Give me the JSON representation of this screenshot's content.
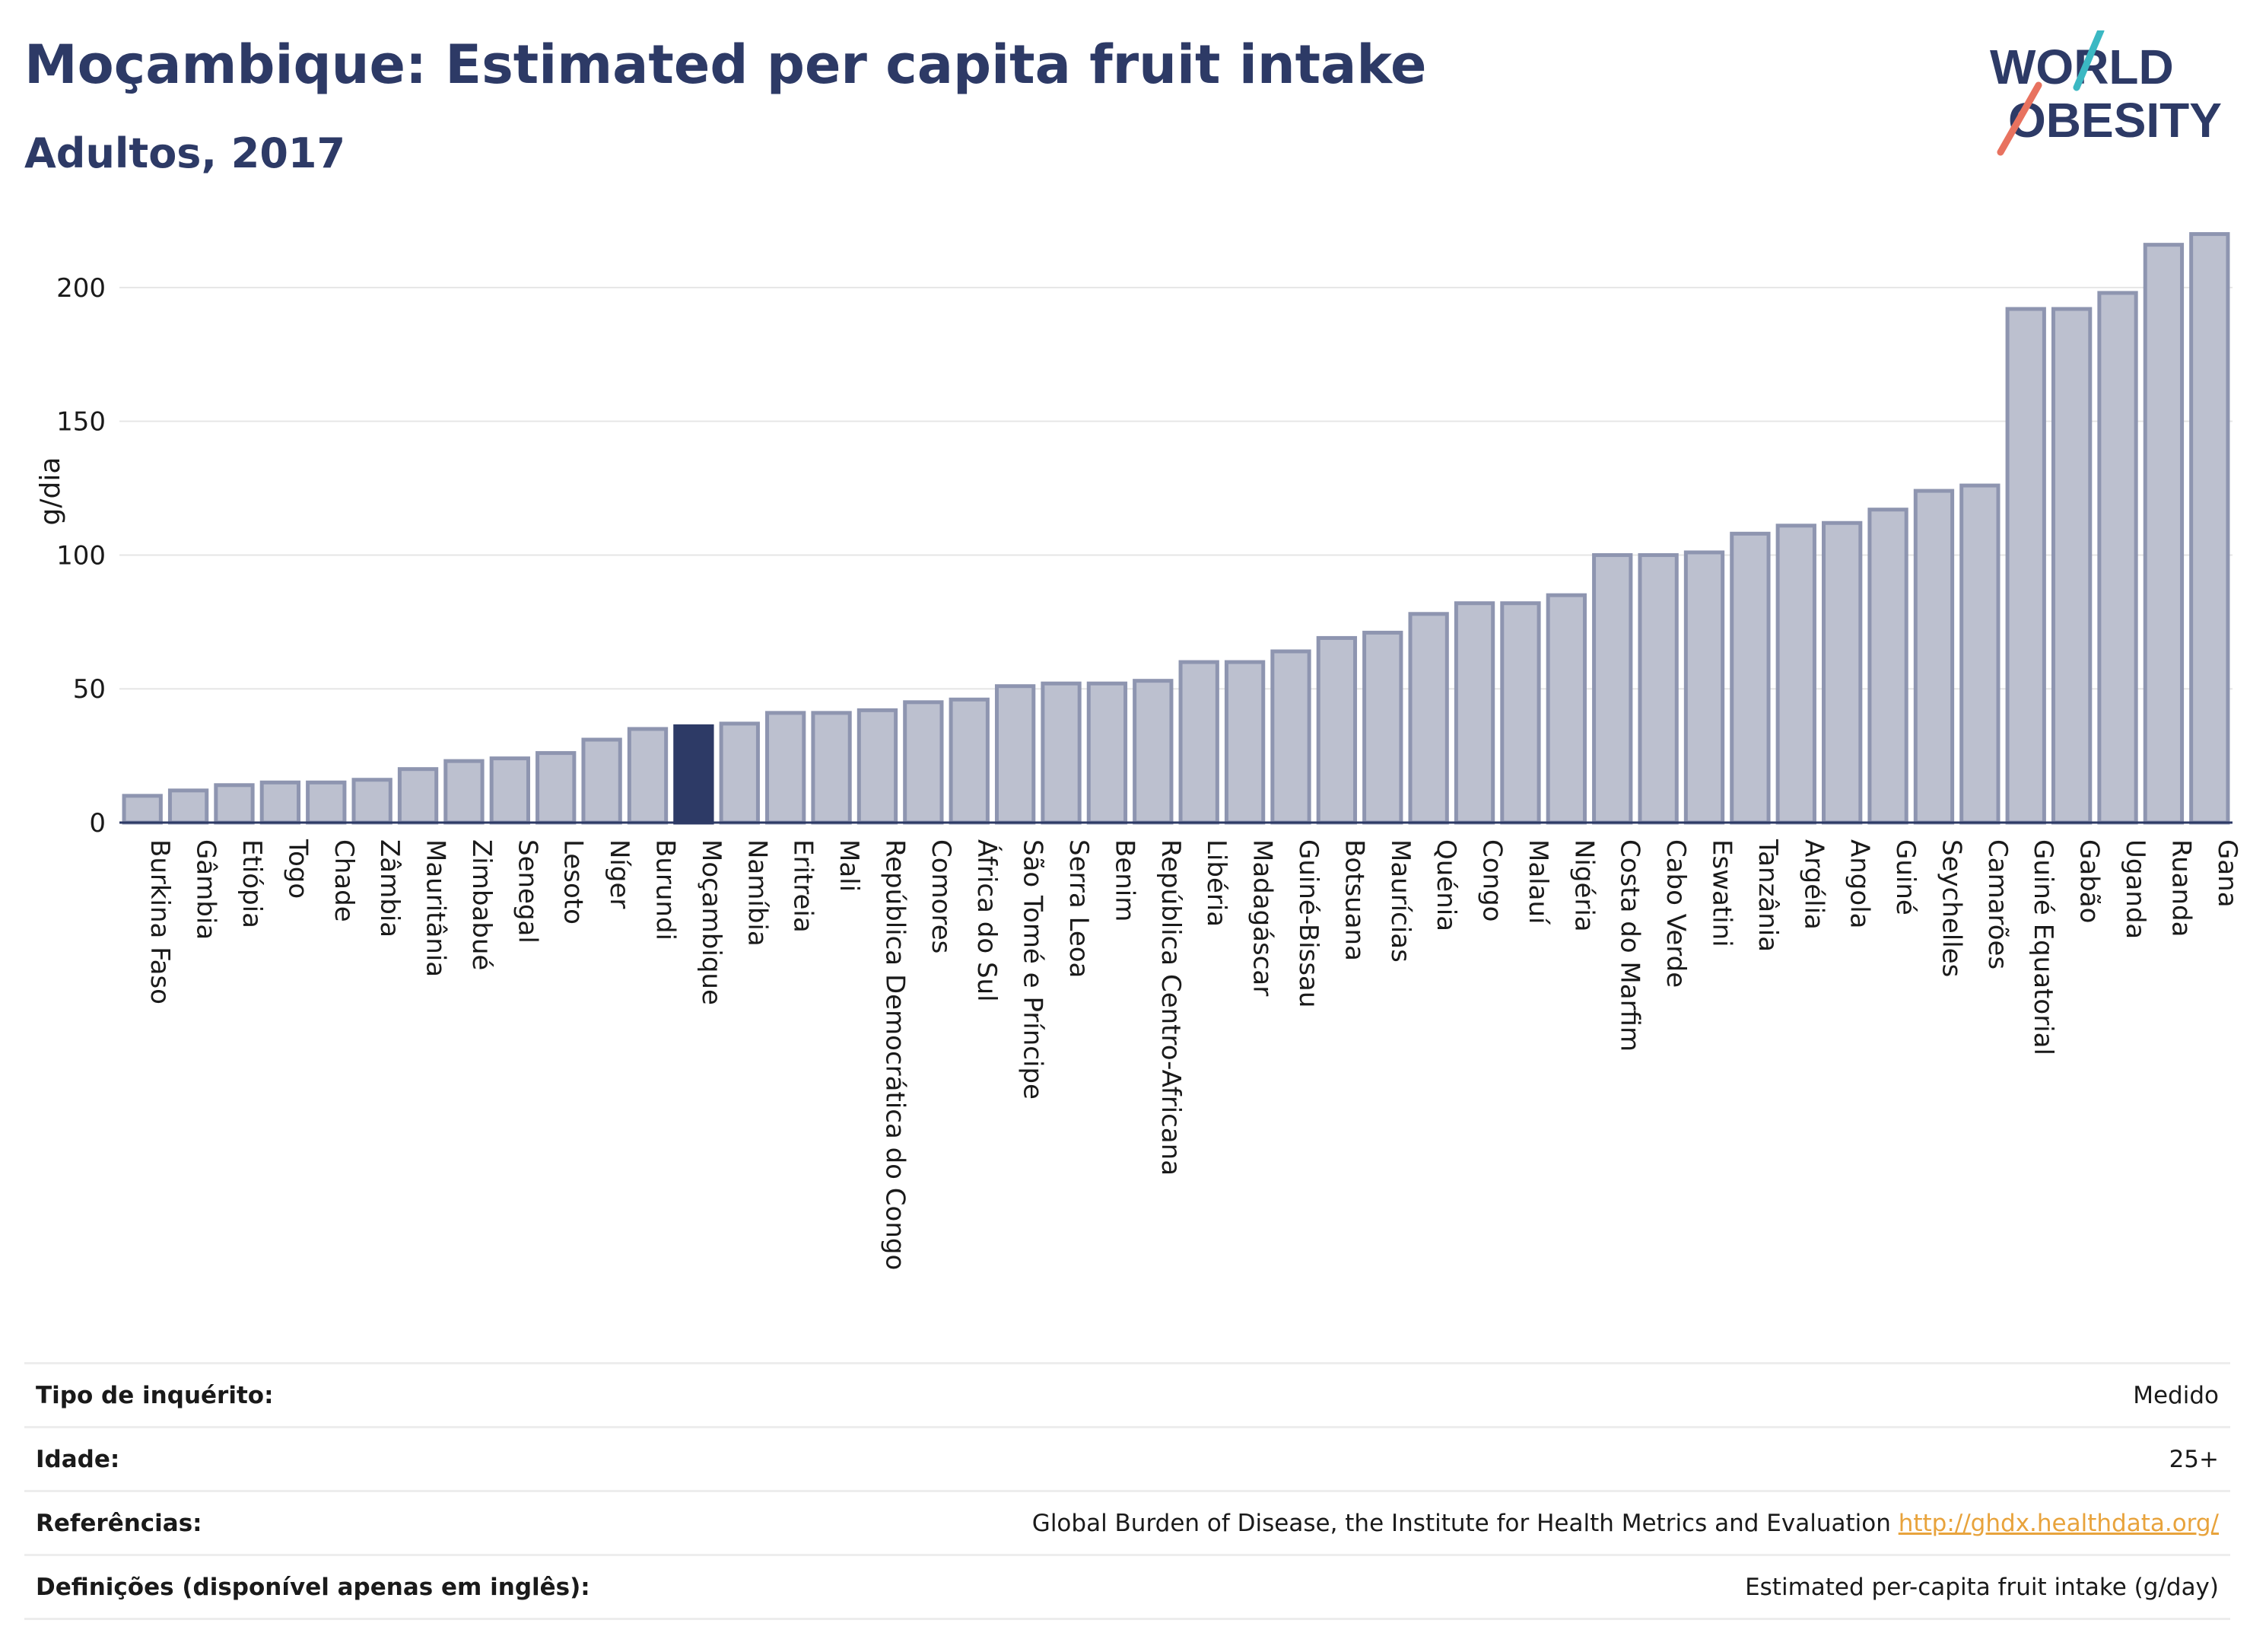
{
  "header": {
    "title": "Moçambique: Estimated per capita fruit intake",
    "subtitle": "Adultos, 2017"
  },
  "logo": {
    "line1": "WORLD",
    "line2": "OBESITY",
    "accent_colors": [
      "#3bb8c3",
      "#e8725f"
    ]
  },
  "colors": {
    "bar_fill": "#bcc0cf",
    "bar_stroke": "#8e95b0",
    "highlight": "#2d3a66",
    "text": "#1a1a1a",
    "grid": "#e6e6e6"
  },
  "chart_data": {
    "type": "bar",
    "ylabel": "g/dia",
    "ylim": [
      0,
      225
    ],
    "yticks": [
      0,
      50,
      100,
      150,
      200
    ],
    "grid": true,
    "highlight": "Moçambique",
    "categories": [
      "Burkina Faso",
      "Gâmbia",
      "Etiópia",
      "Togo",
      "Chade",
      "Zâmbia",
      "Mauritânia",
      "Zimbabué",
      "Senegal",
      "Lesoto",
      "Níger",
      "Burundi",
      "Moçambique",
      "Namíbia",
      "Eritreia",
      "Mali",
      "República Democrática do Congo",
      "Comores",
      "África do Sul",
      "São Tomé e Príncipe",
      "Serra Leoa",
      "Benim",
      "República Centro-Africana",
      "Libéria",
      "Madagáscar",
      "Guiné-Bissau",
      "Botsuana",
      "Maurícias",
      "Quénia",
      "Congo",
      "Malauí",
      "Nigéria",
      "Costa do Marfim",
      "Cabo Verde",
      "Eswatini",
      "Tanzânia",
      "Argélia",
      "Angola",
      "Guiné",
      "Seychelles",
      "Camarões",
      "Guiné Equatorial",
      "Gabão",
      "Uganda",
      "Ruanda",
      "Gana"
    ],
    "values": [
      10,
      12,
      14,
      15,
      15,
      16,
      20,
      23,
      24,
      26,
      31,
      35,
      36,
      37,
      41,
      41,
      42,
      45,
      46,
      51,
      52,
      52,
      53,
      60,
      60,
      64,
      69,
      71,
      78,
      82,
      82,
      85,
      100,
      100,
      101,
      108,
      111,
      112,
      117,
      124,
      126,
      192,
      192,
      198,
      216,
      220
    ]
  },
  "meta": {
    "rows": [
      {
        "label": "Tipo de inquérito:",
        "value": "Medido"
      },
      {
        "label": "Idade:",
        "value": "25+"
      },
      {
        "label": "Referências:",
        "value": "Global Burden of Disease, the Institute for Health Metrics and Evaluation",
        "link": "http://ghdx.healthdata.org/"
      },
      {
        "label": "Definições (disponível apenas em inglês):",
        "value": "Estimated per-capita fruit intake (g/day)"
      }
    ]
  }
}
